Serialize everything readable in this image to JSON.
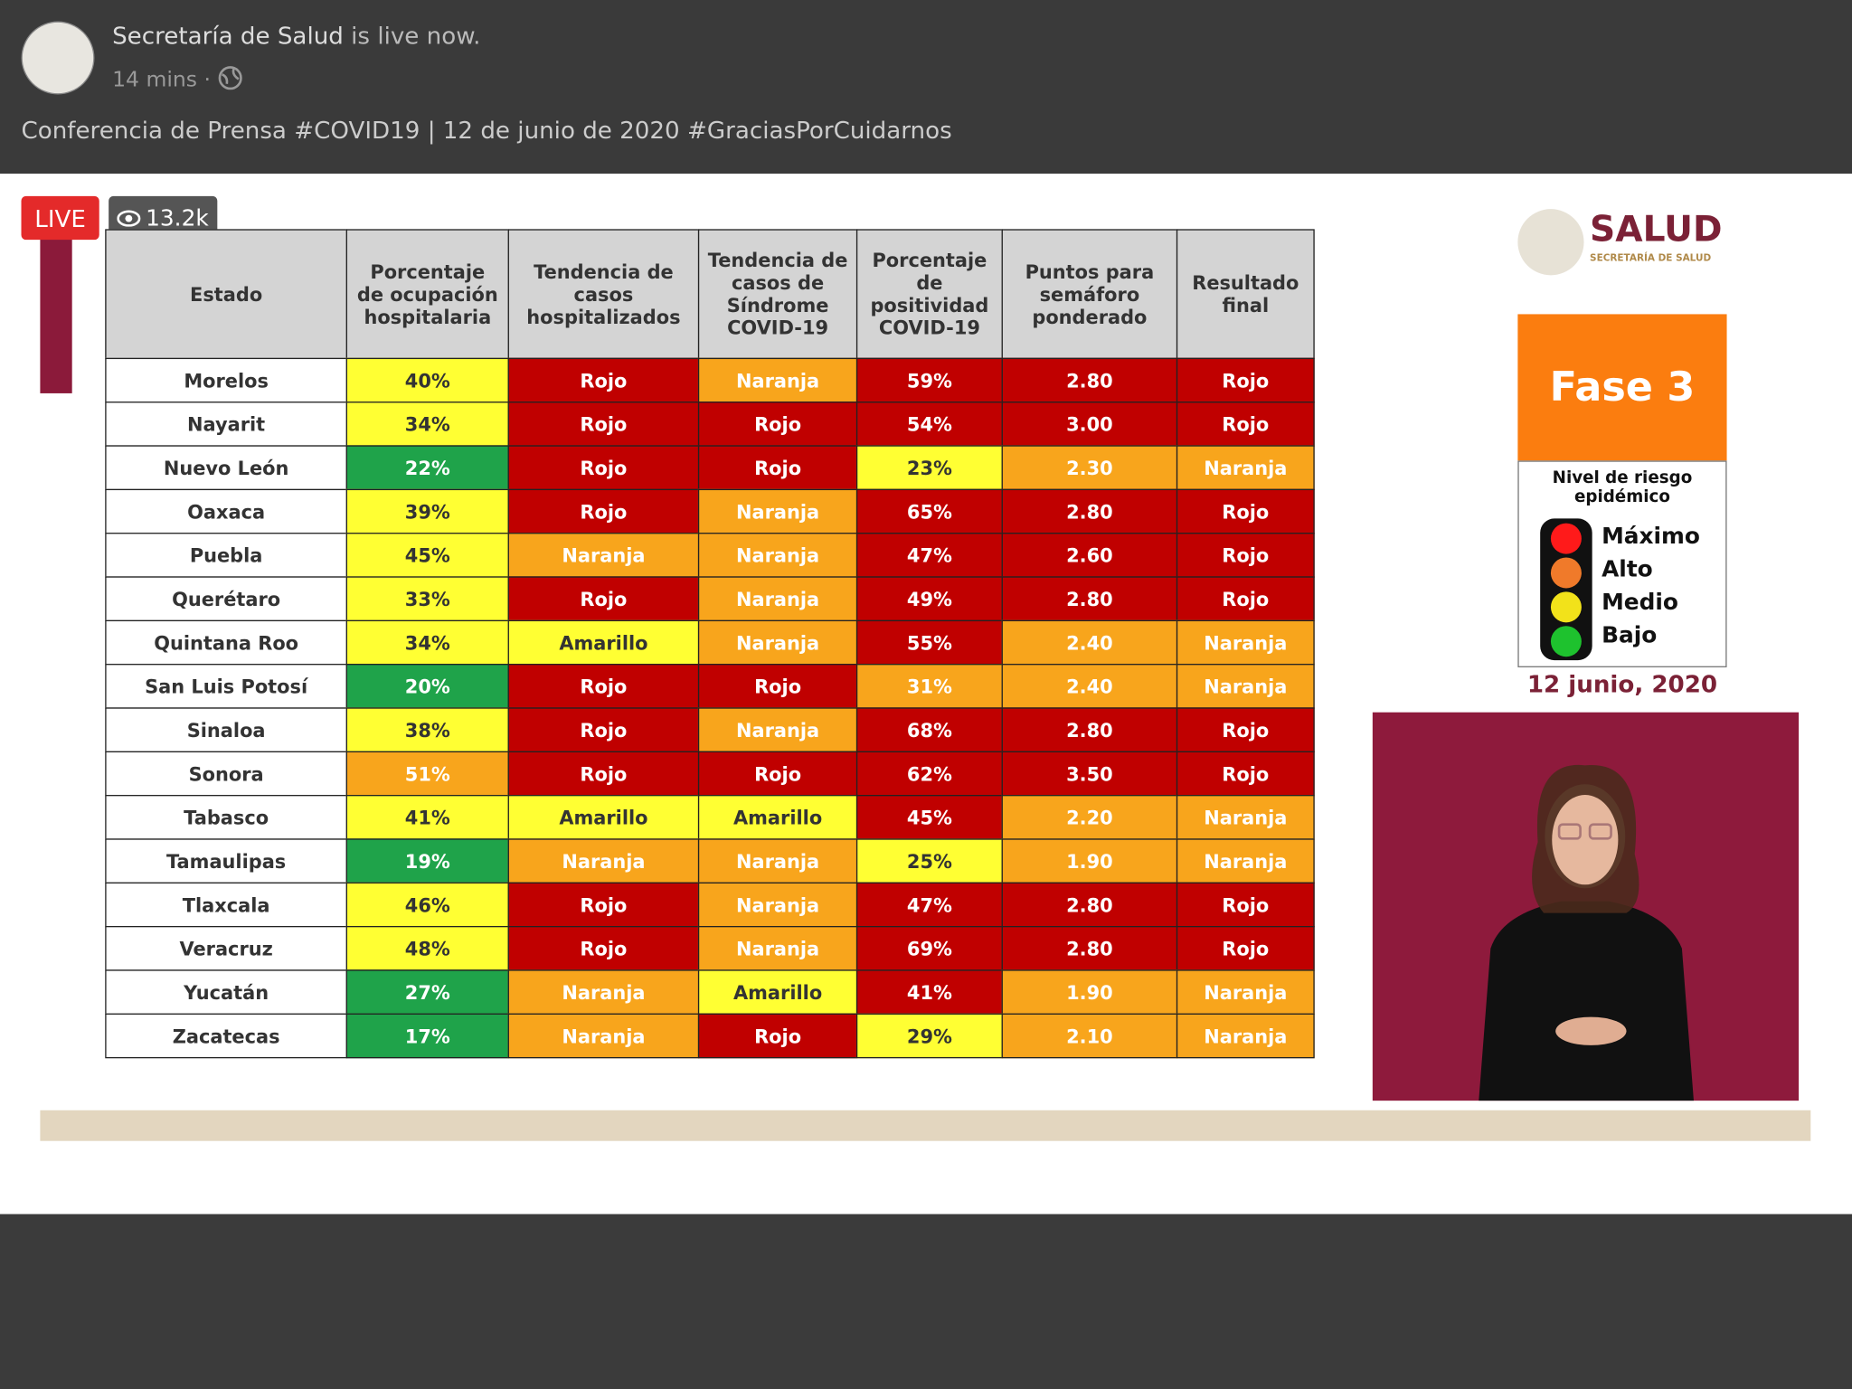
{
  "post": {
    "page_name": "Secretaría de Salud",
    "status": "is live now.",
    "time": "14 mins",
    "text": "Conferencia de Prensa #COVID19 | 12 de junio de 2020 #GraciasPorCuidarnos"
  },
  "video": {
    "live": "LIVE",
    "views": "13.2k"
  },
  "table": {
    "headers": [
      "Estado",
      "Porcentaje de ocupación hospitalaria",
      "Tendencia de casos hospitalizados",
      "Tendencia de casos de Síndrome COVID-19",
      "Porcentaje de positividad COVID-19",
      "Puntos para semáforo ponderado",
      "Resultado final"
    ],
    "rows": [
      {
        "estado": "Morelos",
        "cells": [
          {
            "text": "40%",
            "color": "#ffff33"
          },
          {
            "text": "Rojo",
            "color": "#c00000"
          },
          {
            "text": "Naranja",
            "color": "#f8a51c"
          },
          {
            "text": "59%",
            "color": "#c00000"
          },
          {
            "text": "2.80",
            "color": "#c00000"
          },
          {
            "text": "Rojo",
            "color": "#c00000"
          }
        ]
      },
      {
        "estado": "Nayarit",
        "cells": [
          {
            "text": "34%",
            "color": "#ffff33"
          },
          {
            "text": "Rojo",
            "color": "#c00000"
          },
          {
            "text": "Rojo",
            "color": "#c00000"
          },
          {
            "text": "54%",
            "color": "#c00000"
          },
          {
            "text": "3.00",
            "color": "#c00000"
          },
          {
            "text": "Rojo",
            "color": "#c00000"
          }
        ]
      },
      {
        "estado": "Nuevo León",
        "cells": [
          {
            "text": "22%",
            "color": "#1fa34a"
          },
          {
            "text": "Rojo",
            "color": "#c00000"
          },
          {
            "text": "Rojo",
            "color": "#c00000"
          },
          {
            "text": "23%",
            "color": "#ffff33"
          },
          {
            "text": "2.30",
            "color": "#f8a51c"
          },
          {
            "text": "Naranja",
            "color": "#f8a51c"
          }
        ]
      },
      {
        "estado": "Oaxaca",
        "cells": [
          {
            "text": "39%",
            "color": "#ffff33"
          },
          {
            "text": "Rojo",
            "color": "#c00000"
          },
          {
            "text": "Naranja",
            "color": "#f8a51c"
          },
          {
            "text": "65%",
            "color": "#c00000"
          },
          {
            "text": "2.80",
            "color": "#c00000"
          },
          {
            "text": "Rojo",
            "color": "#c00000"
          }
        ]
      },
      {
        "estado": "Puebla",
        "cells": [
          {
            "text": "45%",
            "color": "#ffff33"
          },
          {
            "text": "Naranja",
            "color": "#f8a51c"
          },
          {
            "text": "Naranja",
            "color": "#f8a51c"
          },
          {
            "text": "47%",
            "color": "#c00000"
          },
          {
            "text": "2.60",
            "color": "#c00000"
          },
          {
            "text": "Rojo",
            "color": "#c00000"
          }
        ]
      },
      {
        "estado": "Querétaro",
        "cells": [
          {
            "text": "33%",
            "color": "#ffff33"
          },
          {
            "text": "Rojo",
            "color": "#c00000"
          },
          {
            "text": "Naranja",
            "color": "#f8a51c"
          },
          {
            "text": "49%",
            "color": "#c00000"
          },
          {
            "text": "2.80",
            "color": "#c00000"
          },
          {
            "text": "Rojo",
            "color": "#c00000"
          }
        ]
      },
      {
        "estado": "Quintana Roo",
        "cells": [
          {
            "text": "34%",
            "color": "#ffff33"
          },
          {
            "text": "Amarillo",
            "color": "#ffff33"
          },
          {
            "text": "Naranja",
            "color": "#f8a51c"
          },
          {
            "text": "55%",
            "color": "#c00000"
          },
          {
            "text": "2.40",
            "color": "#f8a51c"
          },
          {
            "text": "Naranja",
            "color": "#f8a51c"
          }
        ]
      },
      {
        "estado": "San Luis Potosí",
        "cells": [
          {
            "text": "20%",
            "color": "#1fa34a"
          },
          {
            "text": "Rojo",
            "color": "#c00000"
          },
          {
            "text": "Rojo",
            "color": "#c00000"
          },
          {
            "text": "31%",
            "color": "#f8a51c"
          },
          {
            "text": "2.40",
            "color": "#f8a51c"
          },
          {
            "text": "Naranja",
            "color": "#f8a51c"
          }
        ]
      },
      {
        "estado": "Sinaloa",
        "cells": [
          {
            "text": "38%",
            "color": "#ffff33"
          },
          {
            "text": "Rojo",
            "color": "#c00000"
          },
          {
            "text": "Naranja",
            "color": "#f8a51c"
          },
          {
            "text": "68%",
            "color": "#c00000"
          },
          {
            "text": "2.80",
            "color": "#c00000"
          },
          {
            "text": "Rojo",
            "color": "#c00000"
          }
        ]
      },
      {
        "estado": "Sonora",
        "cells": [
          {
            "text": "51%",
            "color": "#f8a51c"
          },
          {
            "text": "Rojo",
            "color": "#c00000"
          },
          {
            "text": "Rojo",
            "color": "#c00000"
          },
          {
            "text": "62%",
            "color": "#c00000"
          },
          {
            "text": "3.50",
            "color": "#c00000"
          },
          {
            "text": "Rojo",
            "color": "#c00000"
          }
        ]
      },
      {
        "estado": "Tabasco",
        "cells": [
          {
            "text": "41%",
            "color": "#ffff33"
          },
          {
            "text": "Amarillo",
            "color": "#ffff33"
          },
          {
            "text": "Amarillo",
            "color": "#ffff33"
          },
          {
            "text": "45%",
            "color": "#c00000"
          },
          {
            "text": "2.20",
            "color": "#f8a51c"
          },
          {
            "text": "Naranja",
            "color": "#f8a51c"
          }
        ]
      },
      {
        "estado": "Tamaulipas",
        "cells": [
          {
            "text": "19%",
            "color": "#1fa34a"
          },
          {
            "text": "Naranja",
            "color": "#f8a51c"
          },
          {
            "text": "Naranja",
            "color": "#f8a51c"
          },
          {
            "text": "25%",
            "color": "#ffff33"
          },
          {
            "text": "1.90",
            "color": "#f8a51c"
          },
          {
            "text": "Naranja",
            "color": "#f8a51c"
          }
        ]
      },
      {
        "estado": "Tlaxcala",
        "cells": [
          {
            "text": "46%",
            "color": "#ffff33"
          },
          {
            "text": "Rojo",
            "color": "#c00000"
          },
          {
            "text": "Naranja",
            "color": "#f8a51c"
          },
          {
            "text": "47%",
            "color": "#c00000"
          },
          {
            "text": "2.80",
            "color": "#c00000"
          },
          {
            "text": "Rojo",
            "color": "#c00000"
          }
        ]
      },
      {
        "estado": "Veracruz",
        "cells": [
          {
            "text": "48%",
            "color": "#ffff33"
          },
          {
            "text": "Rojo",
            "color": "#c00000"
          },
          {
            "text": "Naranja",
            "color": "#f8a51c"
          },
          {
            "text": "69%",
            "color": "#c00000"
          },
          {
            "text": "2.80",
            "color": "#c00000"
          },
          {
            "text": "Rojo",
            "color": "#c00000"
          }
        ]
      },
      {
        "estado": "Yucatán",
        "cells": [
          {
            "text": "27%",
            "color": "#1fa34a"
          },
          {
            "text": "Naranja",
            "color": "#f8a51c"
          },
          {
            "text": "Amarillo",
            "color": "#ffff33"
          },
          {
            "text": "41%",
            "color": "#c00000"
          },
          {
            "text": "1.90",
            "color": "#f8a51c"
          },
          {
            "text": "Naranja",
            "color": "#f8a51c"
          }
        ]
      },
      {
        "estado": "Zacatecas",
        "cells": [
          {
            "text": "17%",
            "color": "#1fa34a"
          },
          {
            "text": "Naranja",
            "color": "#f8a51c"
          },
          {
            "text": "Rojo",
            "color": "#c00000"
          },
          {
            "text": "29%",
            "color": "#ffff33"
          },
          {
            "text": "2.10",
            "color": "#f8a51c"
          },
          {
            "text": "Naranja",
            "color": "#f8a51c"
          }
        ]
      }
    ]
  },
  "panel": {
    "logo": "SALUD",
    "logo_sub": "SECRETARÍA DE SALUD",
    "phase": "Fase 3",
    "risk_title": "Nivel de riesgo epidémico",
    "levels": [
      {
        "label": "Máximo",
        "color": "#ff1a1a"
      },
      {
        "label": "Alto",
        "color": "#f07a2a"
      },
      {
        "label": "Medio",
        "color": "#f2e21a"
      },
      {
        "label": "Bajo",
        "color": "#1ec22e"
      }
    ],
    "date": "12 junio, 2020"
  }
}
